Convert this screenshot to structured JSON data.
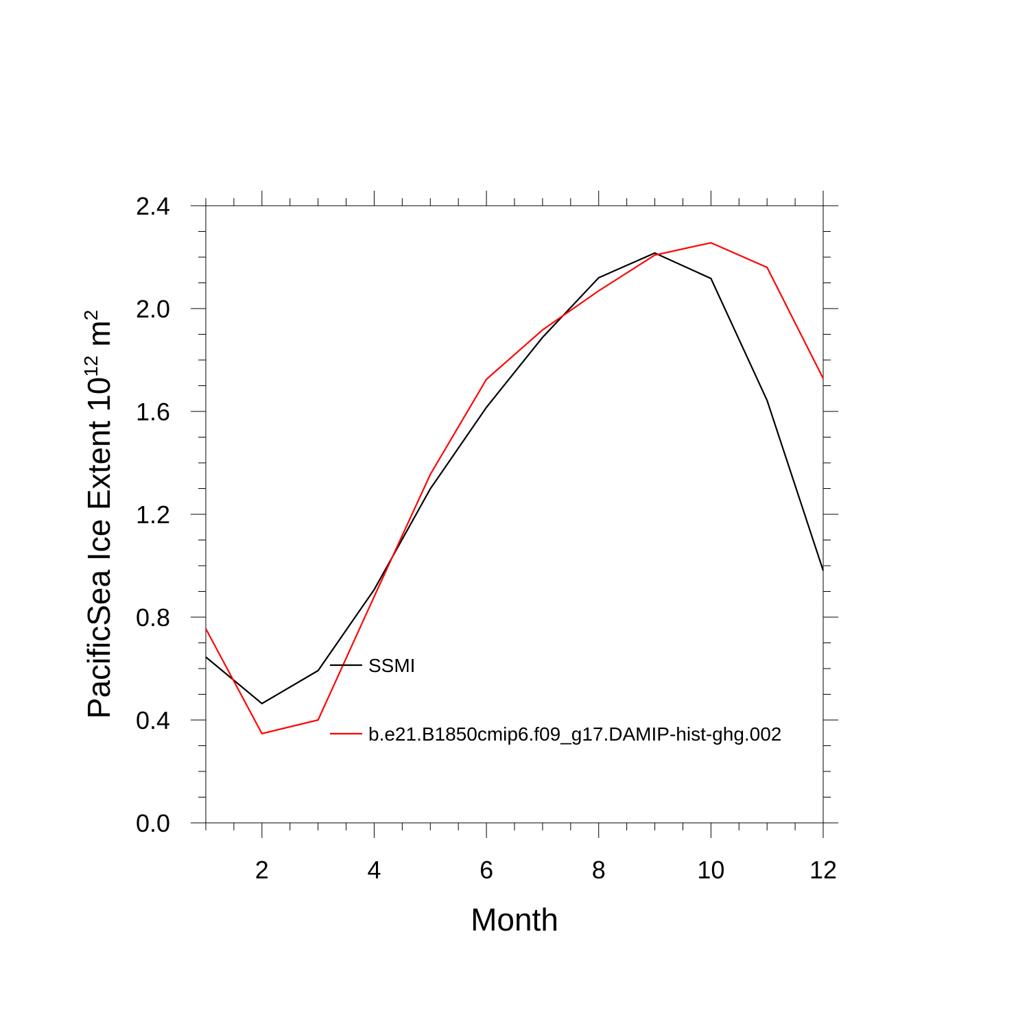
{
  "chart_data": {
    "type": "line",
    "title": "",
    "xlabel": "Month",
    "ylabel_main": "PacificSea Ice Extent 10",
    "ylabel_exp": "12",
    "ylabel_unit": " m",
    "ylabel_unit_exp": "2",
    "xlim": [
      1,
      12
    ],
    "ylim": [
      0,
      2.4
    ],
    "x_ticks": [
      2,
      4,
      6,
      8,
      10,
      12
    ],
    "x_tick_labels": [
      "2",
      "4",
      "6",
      "8",
      "10",
      "12"
    ],
    "y_ticks": [
      0,
      0.4,
      0.8,
      1.2,
      1.6,
      2.0,
      2.4
    ],
    "y_tick_labels": [
      "0.0",
      "0.4",
      "0.8",
      "1.2",
      "1.6",
      "2.0",
      "2.4"
    ],
    "grid": false,
    "legend_placement": "bottom-center inside",
    "x": [
      1,
      2,
      3,
      4,
      5,
      6,
      7,
      8,
      9,
      10,
      11,
      12
    ],
    "series": [
      {
        "name": "SSMI",
        "color": "#000000",
        "values": [
          0.645,
          0.464,
          0.592,
          0.907,
          1.299,
          1.616,
          1.888,
          2.12,
          2.216,
          2.117,
          1.643,
          0.981
        ]
      },
      {
        "name": "b.e21.B1850cmip6.f09_g17.DAMIP-hist-ghg.002",
        "color": "#ff0000",
        "values": [
          0.755,
          0.347,
          0.4,
          0.88,
          1.355,
          1.725,
          1.917,
          2.069,
          2.208,
          2.256,
          2.16,
          1.728
        ]
      }
    ]
  }
}
